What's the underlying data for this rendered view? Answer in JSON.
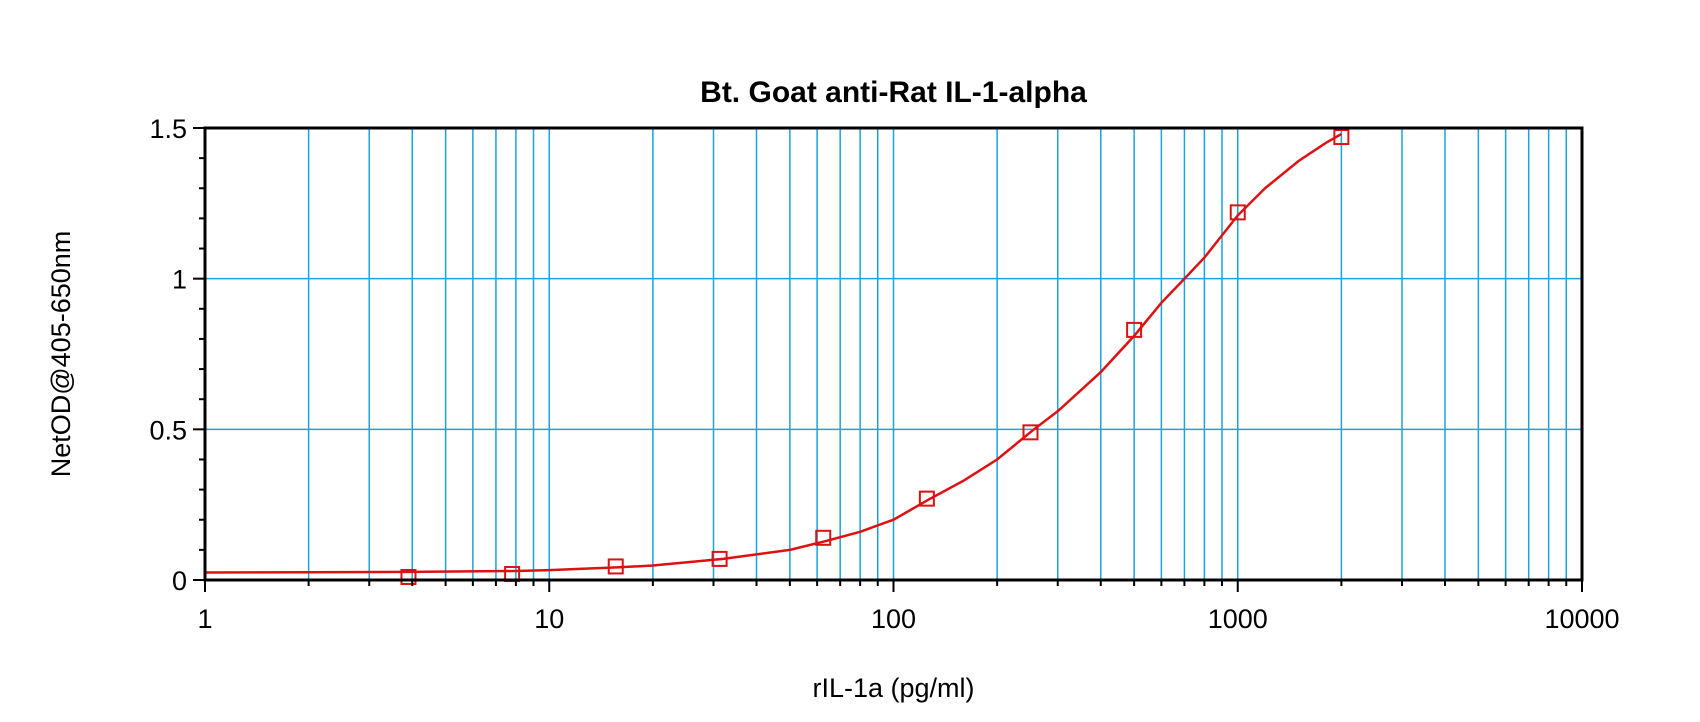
{
  "chart_data": {
    "type": "scatter",
    "title": "Bt. Goat anti-Rat IL-1-alpha",
    "xlabel": "rIL-1a (pg/ml)",
    "ylabel": "NetOD@405-650nm",
    "x_scale": "log",
    "xlim": [
      1,
      10000
    ],
    "ylim": [
      0,
      1.5
    ],
    "x_ticks": [
      1,
      10,
      100,
      1000,
      10000
    ],
    "x_tick_labels": [
      "1",
      "10",
      "100",
      "1000",
      "10000"
    ],
    "y_ticks": [
      0,
      0.5,
      1,
      1.5
    ],
    "y_tick_labels": [
      "0",
      "0.5",
      "1",
      "1.5"
    ],
    "grid": true,
    "colors": {
      "series": "#dd1111",
      "grid": "#1aa3dd",
      "frame": "#000000"
    },
    "series": [
      {
        "marker": "open-square",
        "x": [
          3.9,
          7.8,
          15.6,
          31.25,
          62.5,
          125,
          250,
          500,
          1000,
          2000
        ],
        "y": [
          0.01,
          0.02,
          0.045,
          0.07,
          0.14,
          0.27,
          0.49,
          0.83,
          1.22,
          1.47
        ]
      }
    ],
    "fit_curve": {
      "x": [
        1,
        2,
        4,
        8,
        10,
        16,
        20,
        32,
        50,
        64,
        80,
        100,
        128,
        160,
        200,
        256,
        300,
        400,
        500,
        600,
        700,
        800,
        1000,
        1200,
        1500,
        1800,
        2000
      ],
      "y": [
        0.025,
        0.026,
        0.027,
        0.03,
        0.033,
        0.042,
        0.048,
        0.07,
        0.1,
        0.13,
        0.16,
        0.2,
        0.27,
        0.33,
        0.4,
        0.5,
        0.56,
        0.69,
        0.81,
        0.92,
        1.0,
        1.07,
        1.21,
        1.3,
        1.39,
        1.45,
        1.48
      ]
    }
  }
}
